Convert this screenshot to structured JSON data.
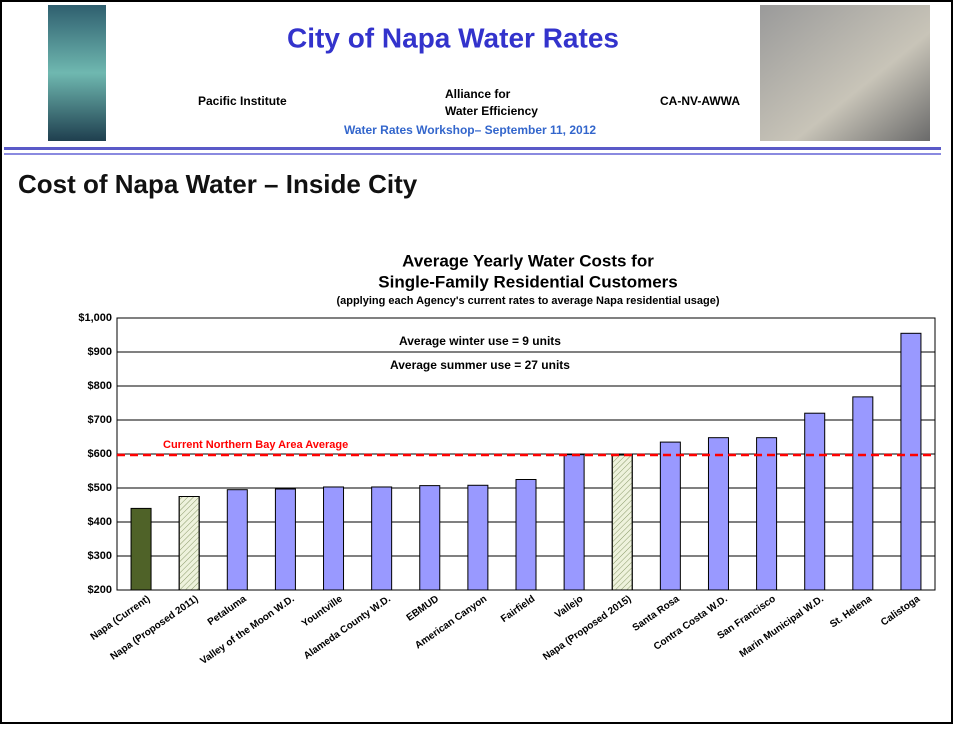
{
  "slide": {
    "title": "City of Napa Water Rates",
    "partners": [
      "Pacific Institute",
      "Alliance for",
      "Water Efficiency",
      "CA-NV-AWWA"
    ],
    "event": "Water Rates Workshop– September 11, 2012",
    "heading": "Cost of Napa Water – Inside City"
  },
  "chart_data": {
    "type": "bar",
    "title": [
      "Average Yearly Water Costs for",
      "Single-Family Residential Customers"
    ],
    "subtitle": "(applying each Agency's current rates to average Napa residential usage)",
    "annotations": [
      "Average winter use = 9 units",
      "Average summer use = 27 units"
    ],
    "categories": [
      "Napa (Current)",
      "Napa (Proposed 2011)",
      "Petaluma",
      "Valley of the Moon W.D.",
      "Yountville",
      "Alameda County W.D.",
      "EBMUD",
      "American Canyon",
      "Fairfield",
      "Vallejo",
      "Napa (Proposed 2015)",
      "Santa Rosa",
      "Contra Costa W.D.",
      "San Francisco",
      "Marin Municipal W.D.",
      "St. Helena",
      "Calistoga"
    ],
    "values": [
      440,
      475,
      495,
      497,
      503,
      503,
      507,
      508,
      525,
      598,
      597,
      635,
      648,
      648,
      720,
      768,
      955
    ],
    "colors": [
      "#4f6228",
      "#eef2dc",
      "#9999ff",
      "#9999ff",
      "#9999ff",
      "#9999ff",
      "#9999ff",
      "#9999ff",
      "#9999ff",
      "#9999ff",
      "#eef2dc",
      "#9999ff",
      "#9999ff",
      "#9999ff",
      "#9999ff",
      "#9999ff",
      "#9999ff"
    ],
    "hatched": [
      false,
      true,
      false,
      false,
      false,
      false,
      false,
      false,
      false,
      false,
      true,
      false,
      false,
      false,
      false,
      false,
      false
    ],
    "reference_line": {
      "value": 597,
      "label": "Current Northern Bay Area Average",
      "color": "#ff0000"
    },
    "ylim": [
      200,
      1000
    ],
    "yticks": [
      {
        "value": 200,
        "label": "$200"
      },
      {
        "value": 300,
        "label": "$300"
      },
      {
        "value": 400,
        "label": "$400"
      },
      {
        "value": 500,
        "label": "$500"
      },
      {
        "value": 600,
        "label": "$600"
      },
      {
        "value": 700,
        "label": "$700"
      },
      {
        "value": 800,
        "label": "$800"
      },
      {
        "value": 900,
        "label": "$900"
      },
      {
        "value": 1000,
        "label": "$1,000"
      }
    ],
    "grid": true
  }
}
